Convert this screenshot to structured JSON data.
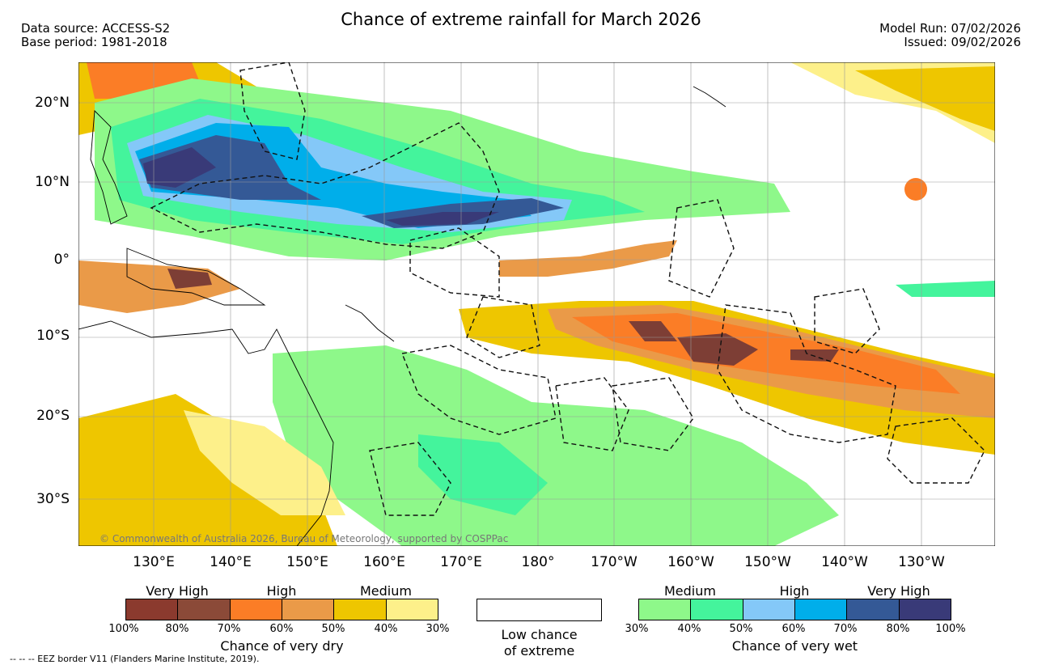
{
  "title": "Chance of extreme rainfall for March 2026",
  "header": {
    "data_source": "Data source: ACCESS-S2",
    "base_period": "Base period: 1981-2018",
    "model_run": "Model Run: 07/02/2026",
    "issued": "Issued: 09/02/2026"
  },
  "axes": {
    "lat": [
      "20°N",
      "10°N",
      "0°",
      "10°S",
      "20°S",
      "30°S"
    ],
    "lon": [
      "130°E",
      "140°E",
      "150°E",
      "160°E",
      "170°E",
      "180°",
      "170°W",
      "160°W",
      "150°W",
      "140°W",
      "130°W"
    ]
  },
  "copyright": "© Commonwealth of Australia 2026, Bureau of Meteorology, supported by COSPPac",
  "legend_dry": {
    "headers": [
      "Very High",
      "High",
      "Medium"
    ],
    "ticks": [
      "100%",
      "80%",
      "70%",
      "60%",
      "50%",
      "40%",
      "30%"
    ],
    "caption": "Chance of very dry",
    "colors": [
      "#8b3a2e",
      "#8b4a38",
      "#fb7d26",
      "#ea9a48",
      "#eec600",
      "#fdf08a"
    ]
  },
  "legend_low": {
    "caption_line1": "Low chance",
    "caption_line2": "of extreme"
  },
  "legend_wet": {
    "headers": [
      "Medium",
      "High",
      "Very High"
    ],
    "ticks": [
      "30%",
      "40%",
      "50%",
      "60%",
      "70%",
      "80%",
      "100%"
    ],
    "caption": "Chance of very wet",
    "colors": [
      "#8ef88a",
      "#44f49c",
      "#84c8f8",
      "#00aeea",
      "#345996",
      "#393a78"
    ]
  },
  "footnote": "--  --  -- EEZ border V11 (Flanders Marine Institute, 2019).",
  "colors": {
    "vh_dry": "#7d3e35",
    "dry_70": "#fb7d26",
    "dry_60": "#ea9a48",
    "dry_50": "#eec600",
    "dry_40": "#fdf08a",
    "wet_30": "#8ef88a",
    "wet_40": "#44f49c",
    "wet_50": "#84c8f8",
    "wet_60": "#00aeea",
    "wet_70": "#345996",
    "wet_80": "#393a78"
  }
}
